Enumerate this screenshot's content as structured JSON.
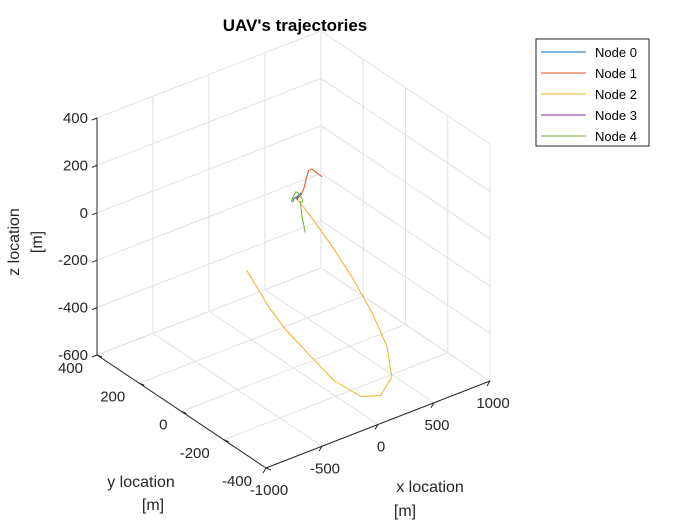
{
  "chart_data": {
    "type": "line3d",
    "title": "UAV's trajectories",
    "xlabel": [
      "x location",
      "[m]"
    ],
    "ylabel": [
      "y location",
      "[m]"
    ],
    "zlabel": [
      "z location",
      "[m]"
    ],
    "xlim": [
      -1000,
      1000
    ],
    "ylim": [
      -400,
      400
    ],
    "zlim": [
      -600,
      400
    ],
    "xticks": [
      -1000,
      -500,
      0,
      500,
      1000
    ],
    "yticks": [
      -400,
      -200,
      0,
      200,
      400
    ],
    "zticks": [
      -600,
      -400,
      -200,
      0,
      200,
      400
    ],
    "xtick_labels": [
      "-1000",
      "-500",
      "0",
      "500",
      "1000"
    ],
    "ytick_labels": [
      "-400",
      "-200",
      "0",
      "200",
      "400"
    ],
    "ztick_labels": [
      "-600",
      "-400",
      "-200",
      "0",
      "200",
      "400"
    ],
    "grid": true,
    "legend_position": "top-right",
    "series": [
      {
        "name": "Node 0",
        "color": "#0072BD",
        "points": [
          [
            -20,
            -10,
            110
          ],
          [
            -40,
            -20,
            122
          ],
          [
            -50,
            -25,
            132
          ],
          [
            -40,
            -25,
            140
          ],
          [
            -20,
            -20,
            135
          ],
          [
            10,
            -10,
            125
          ],
          [
            40,
            0,
            118
          ],
          [
            90,
            15,
            110
          ],
          [
            120,
            30,
            100
          ]
        ]
      },
      {
        "name": "Node 1",
        "color": "#D95319",
        "points": [
          [
            40,
            0,
            110
          ],
          [
            90,
            10,
            112
          ],
          [
            130,
            20,
            120
          ],
          [
            170,
            30,
            150
          ],
          [
            200,
            35,
            175
          ],
          [
            240,
            40,
            172
          ],
          [
            280,
            45,
            150
          ],
          [
            320,
            50,
            128
          ],
          [
            360,
            55,
            108
          ]
        ]
      },
      {
        "name": "Node 2",
        "color": "#EDB120",
        "points": [
          [
            -10,
            -15,
            125
          ],
          [
            30,
            0,
            110
          ],
          [
            90,
            -40,
            40
          ],
          [
            150,
            -100,
            -50
          ],
          [
            200,
            -170,
            -150
          ],
          [
            230,
            -250,
            -260
          ],
          [
            230,
            -320,
            -360
          ],
          [
            180,
            -370,
            -450
          ],
          [
            80,
            -370,
            -510
          ],
          [
            -20,
            -330,
            -520
          ],
          [
            -120,
            -260,
            -480
          ],
          [
            -200,
            -180,
            -400
          ],
          [
            -280,
            -110,
            -320
          ],
          [
            -340,
            -60,
            -240
          ],
          [
            -385,
            -20,
            -160
          ],
          [
            -420,
            0,
            -110
          ]
        ]
      },
      {
        "name": "Node 3",
        "color": "#7E2F8E",
        "points": [
          [
            20,
            -5,
            112
          ],
          [
            35,
            0,
            118
          ],
          [
            45,
            5,
            112
          ],
          [
            50,
            8,
            104
          ],
          [
            40,
            4,
            100
          ],
          [
            30,
            0,
            106
          ]
        ]
      },
      {
        "name": "Node 4",
        "color": "#77AC30",
        "points": [
          [
            -30,
            -10,
            110
          ],
          [
            -45,
            -15,
            125
          ],
          [
            -30,
            -15,
            138
          ],
          [
            -10,
            -10,
            140
          ],
          [
            20,
            0,
            140
          ],
          [
            50,
            5,
            128
          ],
          [
            70,
            5,
            110
          ],
          [
            80,
            0,
            95
          ],
          [
            70,
            -5,
            90
          ],
          [
            50,
            -5,
            95
          ],
          [
            40,
            -20,
            40
          ],
          [
            30,
            -40,
            -10
          ]
        ]
      }
    ]
  }
}
